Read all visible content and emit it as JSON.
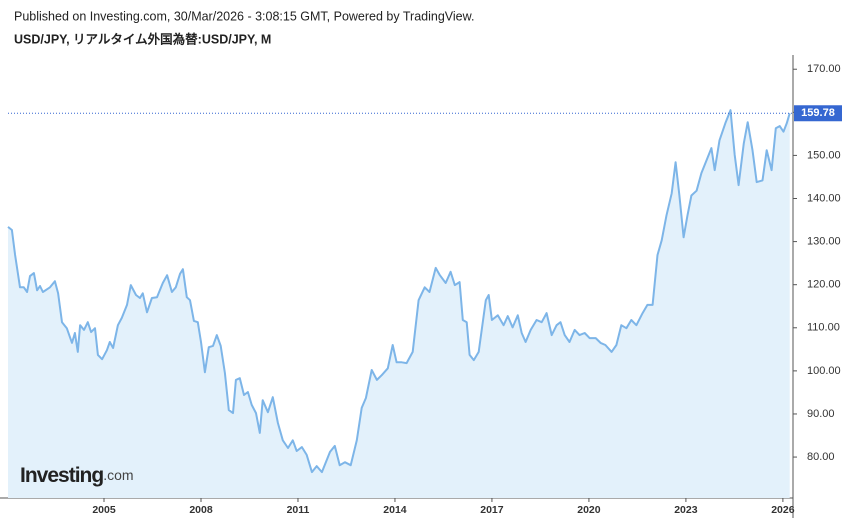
{
  "header": {
    "published": "Published on Investing.com, 30/Mar/2026 - 3:08:15 GMT, Powered by TradingView."
  },
  "logo": {
    "brand": "Investing",
    "suffix": ".com"
  },
  "chart_data": {
    "type": "area",
    "title": "USD/JPY, リアルタイム外国為替:USD/JPY, M",
    "x": [
      2002.03,
      2002.15,
      2002.25,
      2002.4,
      2002.52,
      2002.62,
      2002.71,
      2002.83,
      2002.93,
      2003.02,
      2003.11,
      2003.33,
      2003.48,
      2003.58,
      2003.7,
      2003.85,
      2004.01,
      2004.1,
      2004.19,
      2004.26,
      2004.38,
      2004.5,
      2004.6,
      2004.72,
      2004.81,
      2004.94,
      2005.09,
      2005.18,
      2005.28,
      2005.43,
      2005.55,
      2005.71,
      2005.83,
      2005.99,
      2006.11,
      2006.2,
      2006.33,
      2006.48,
      2006.64,
      2006.82,
      2006.95,
      2007.1,
      2007.22,
      2007.35,
      2007.44,
      2007.56,
      2007.66,
      2007.78,
      2007.9,
      2008.0,
      2008.12,
      2008.24,
      2008.37,
      2008.49,
      2008.61,
      2008.74,
      2008.86,
      2008.99,
      2009.08,
      2009.2,
      2009.33,
      2009.45,
      2009.57,
      2009.7,
      2009.82,
      2009.91,
      2010.07,
      2010.22,
      2010.38,
      2010.53,
      2010.69,
      2010.84,
      2010.96,
      2011.12,
      2011.27,
      2011.43,
      2011.58,
      2011.74,
      2011.99,
      2012.14,
      2012.29,
      2012.45,
      2012.63,
      2012.82,
      2012.97,
      2013.1,
      2013.28,
      2013.44,
      2013.59,
      2013.78,
      2013.93,
      2014.05,
      2014.21,
      2014.36,
      2014.55,
      2014.73,
      2014.92,
      2015.07,
      2015.26,
      2015.38,
      2015.57,
      2015.72,
      2015.85,
      2016.0,
      2016.1,
      2016.22,
      2016.31,
      2016.44,
      2016.59,
      2016.81,
      2016.9,
      2017.0,
      2017.18,
      2017.36,
      2017.49,
      2017.64,
      2017.8,
      2017.92,
      2018.04,
      2018.2,
      2018.38,
      2018.54,
      2018.69,
      2018.85,
      2019.0,
      2019.12,
      2019.25,
      2019.4,
      2019.56,
      2019.71,
      2019.87,
      2020.02,
      2020.21,
      2020.36,
      2020.51,
      2020.7,
      2020.85,
      2021.0,
      2021.16,
      2021.31,
      2021.47,
      2021.66,
      2021.81,
      2021.97,
      2022.12,
      2022.25,
      2022.4,
      2022.56,
      2022.68,
      2022.8,
      2022.93,
      2023.05,
      2023.17,
      2023.33,
      2023.48,
      2023.64,
      2023.79,
      2023.89,
      2024.04,
      2024.23,
      2024.38,
      2024.51,
      2024.63,
      2024.79,
      2024.91,
      2025.06,
      2025.19,
      2025.37,
      2025.5,
      2025.65,
      2025.78,
      2025.9,
      2026.02,
      2026.12,
      2026.21
    ],
    "series": [
      {
        "name": "USD/JPY",
        "color": "#7db5e8",
        "fill": "#e3f1fb",
        "values": [
          133.4,
          132.7,
          126.9,
          119.4,
          119.4,
          118.3,
          122,
          122.7,
          118.7,
          119.7,
          118.3,
          119.4,
          120.8,
          118,
          111.3,
          109.9,
          106.5,
          108.8,
          104.4,
          110.6,
          109.5,
          111.3,
          109,
          109.9,
          103.7,
          102.7,
          104.8,
          106.7,
          105.3,
          110.6,
          112.3,
          115.3,
          119.9,
          117.6,
          116.9,
          118,
          113.6,
          116.9,
          117.1,
          120.4,
          122.2,
          118.3,
          119.4,
          122.5,
          123.6,
          117.1,
          116.4,
          111.6,
          111.3,
          106.7,
          99.7,
          105.5,
          105.8,
          108.3,
          105.8,
          99.5,
          90.9,
          90.2,
          97.9,
          98.3,
          94.4,
          95.1,
          92.1,
          90.2,
          85.6,
          93.2,
          90.4,
          93.9,
          87.9,
          83.9,
          82.1,
          83.9,
          81.4,
          82.3,
          80.5,
          76.5,
          77.9,
          76.5,
          81.2,
          82.6,
          78.1,
          78.8,
          78.1,
          83.9,
          91.4,
          93.7,
          100.2,
          97.9,
          99,
          100.6,
          106,
          102,
          102,
          101.8,
          104.4,
          116.4,
          119.4,
          118.3,
          123.9,
          122.3,
          120.4,
          123,
          119.9,
          120.6,
          111.8,
          111.3,
          103.7,
          102.5,
          104.4,
          116.4,
          117.6,
          111.8,
          112.9,
          110.6,
          112.7,
          110.1,
          112.9,
          108.8,
          106.7,
          109.5,
          111.8,
          111.3,
          113.4,
          108.3,
          110.6,
          111.3,
          108.3,
          106.7,
          109.5,
          108.3,
          108.8,
          107.6,
          107.6,
          106.5,
          106,
          104.4,
          106,
          110.6,
          109.9,
          111.8,
          110.6,
          113.4,
          115.3,
          115.3,
          126.9,
          130.3,
          136.1,
          141.2,
          148.4,
          140.7,
          131,
          136.1,
          140.7,
          141.8,
          145.9,
          148.9,
          151.7,
          146.6,
          153.5,
          157.7,
          160.5,
          150.1,
          143.1,
          152.8,
          157.7,
          151.2,
          143.8,
          144.2,
          151.2,
          146.6,
          156.3,
          156.8,
          155.5,
          157.5,
          159.78
        ]
      }
    ],
    "xlim": [
      2002.03,
      2026.22
    ],
    "xticks": [
      2005,
      2008,
      2011,
      2014,
      2017,
      2020,
      2023,
      2026
    ],
    "ylim": [
      70.5,
      173.3
    ],
    "yticks": [
      {
        "value": 80,
        "label": "80.00"
      },
      {
        "value": 90,
        "label": "90.00"
      },
      {
        "value": 100,
        "label": "100.00"
      },
      {
        "value": 110,
        "label": "110.00"
      },
      {
        "value": 120,
        "label": "120.00"
      },
      {
        "value": 130,
        "label": "130.00"
      },
      {
        "value": 140,
        "label": "140.00"
      },
      {
        "value": 150,
        "label": "150.00"
      },
      {
        "value": 160,
        "label": "160.00"
      },
      {
        "value": 170,
        "label": "170.00"
      }
    ],
    "last_price_color": "#3567d1"
  }
}
